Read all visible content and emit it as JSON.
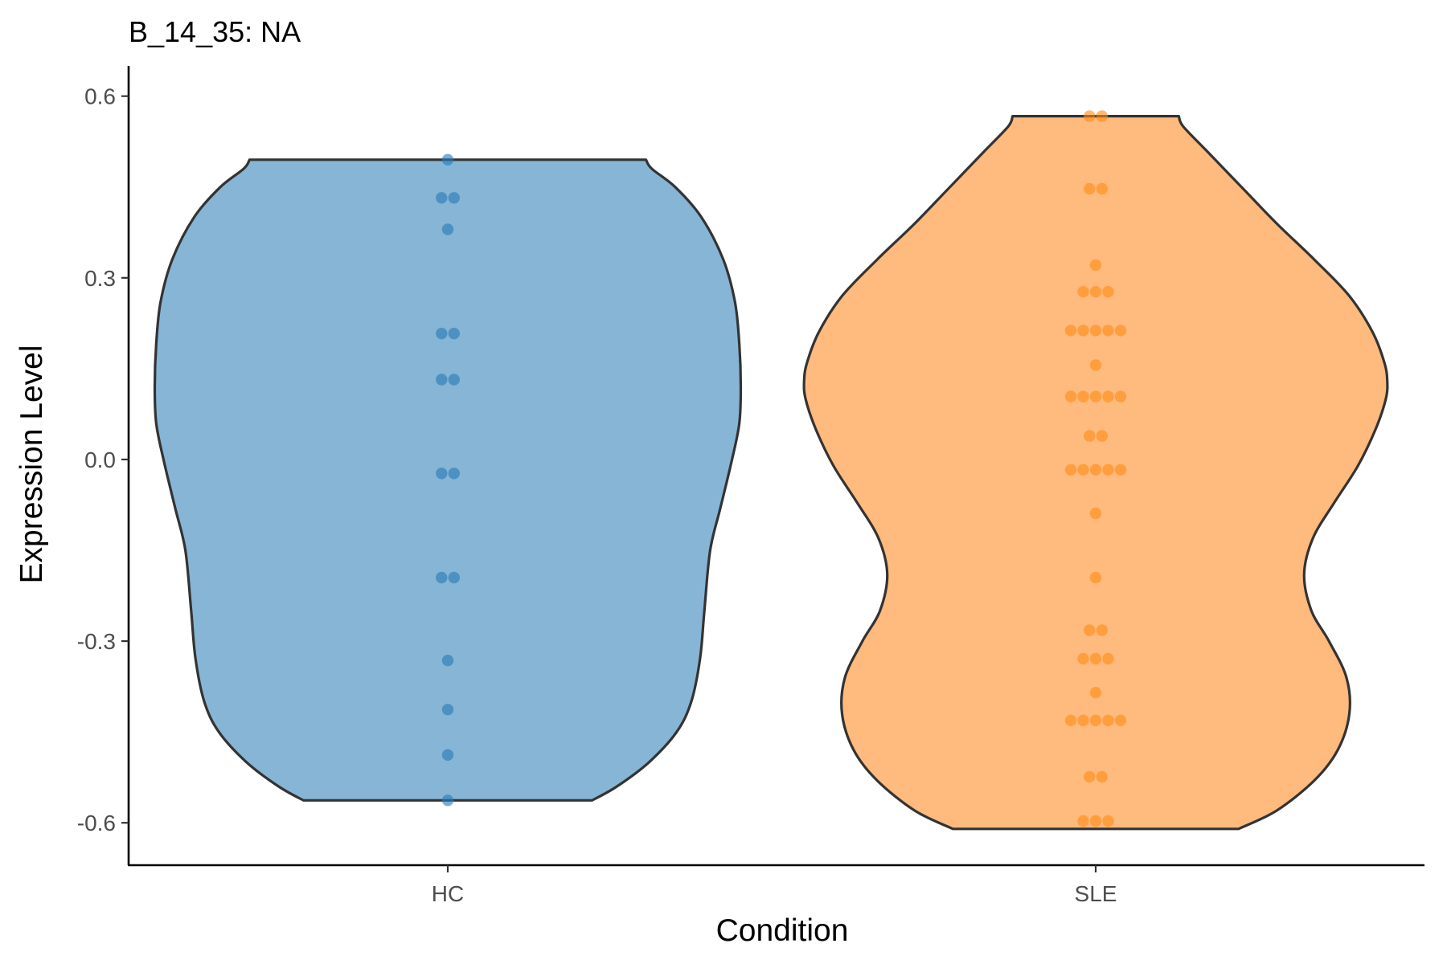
{
  "chart_data": {
    "type": "violin",
    "title": "B_14_35: NA",
    "xlabel": "Condition",
    "ylabel": "Expression Level",
    "categories": [
      "HC",
      "SLE"
    ],
    "ylim": [
      -0.67,
      0.65
    ],
    "yticks": [
      {
        "value": 0.6,
        "label": "0.6"
      },
      {
        "value": 0.3,
        "label": "0.3"
      },
      {
        "value": 0.0,
        "label": "0.0"
      },
      {
        "value": -0.3,
        "label": "-0.3"
      },
      {
        "value": -0.6,
        "label": "-0.6"
      }
    ],
    "grid": false,
    "legend": "none",
    "series": [
      {
        "category": "HC",
        "fill": "#1F77B4",
        "point_color": "#2A7AB8",
        "range": [
          -0.563,
          0.495
        ],
        "density": [
          [
            -0.563,
            0.495
          ],
          [
            -0.54,
            0.58
          ],
          [
            -0.5,
            0.69
          ],
          [
            -0.45,
            0.785
          ],
          [
            -0.4,
            0.835
          ],
          [
            -0.33,
            0.865
          ],
          [
            -0.25,
            0.88
          ],
          [
            -0.15,
            0.9
          ],
          [
            -0.08,
            0.935
          ],
          [
            0.0,
            0.975
          ],
          [
            0.06,
            1.0
          ],
          [
            0.12,
            1.005
          ],
          [
            0.19,
            1.0
          ],
          [
            0.26,
            0.985
          ],
          [
            0.33,
            0.945
          ],
          [
            0.4,
            0.87
          ],
          [
            0.45,
            0.78
          ],
          [
            0.48,
            0.7
          ],
          [
            0.495,
            0.68
          ]
        ],
        "points": [
          0.495,
          0.432,
          0.432,
          0.38,
          0.208,
          0.208,
          0.132,
          0.132,
          -0.023,
          -0.023,
          -0.195,
          -0.195,
          -0.332,
          -0.413,
          -0.488,
          -0.563
        ]
      },
      {
        "category": "SLE",
        "fill": "#FF7F0E",
        "point_color": "#FF8C1A",
        "range": [
          -0.61,
          0.567
        ],
        "density": [
          [
            -0.61,
            0.49
          ],
          [
            -0.58,
            0.62
          ],
          [
            -0.53,
            0.75
          ],
          [
            -0.48,
            0.83
          ],
          [
            -0.42,
            0.87
          ],
          [
            -0.36,
            0.86
          ],
          [
            -0.3,
            0.8
          ],
          [
            -0.25,
            0.74
          ],
          [
            -0.19,
            0.715
          ],
          [
            -0.13,
            0.745
          ],
          [
            -0.07,
            0.82
          ],
          [
            -0.01,
            0.9
          ],
          [
            0.05,
            0.96
          ],
          [
            0.1,
            0.995
          ],
          [
            0.13,
            1.0
          ],
          [
            0.16,
            0.99
          ],
          [
            0.21,
            0.95
          ],
          [
            0.27,
            0.87
          ],
          [
            0.33,
            0.75
          ],
          [
            0.39,
            0.62
          ],
          [
            0.45,
            0.5
          ],
          [
            0.51,
            0.38
          ],
          [
            0.55,
            0.3
          ],
          [
            0.567,
            0.285
          ]
        ],
        "points": [
          0.567,
          0.567,
          0.447,
          0.447,
          0.321,
          0.277,
          0.277,
          0.277,
          0.213,
          0.213,
          0.213,
          0.213,
          0.213,
          0.156,
          0.104,
          0.104,
          0.104,
          0.104,
          0.104,
          0.039,
          0.039,
          -0.017,
          -0.017,
          -0.017,
          -0.017,
          -0.017,
          -0.089,
          -0.195,
          -0.282,
          -0.282,
          -0.329,
          -0.329,
          -0.329,
          -0.385,
          -0.431,
          -0.431,
          -0.431,
          -0.431,
          -0.431,
          -0.524,
          -0.524,
          -0.597,
          -0.597,
          -0.597
        ]
      }
    ]
  }
}
